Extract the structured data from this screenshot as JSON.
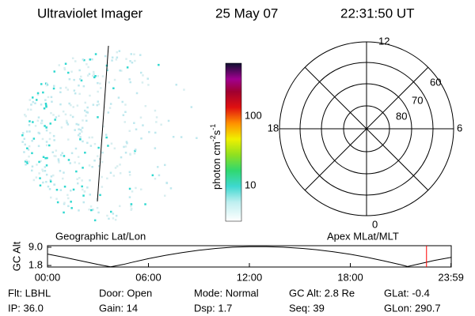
{
  "header": {
    "title": "Ultraviolet Imager",
    "date": "25 May 07",
    "time": "22:31:50 UT"
  },
  "colorbar": {
    "label": "photon cm",
    "exp1": "-2",
    "unit2": "s",
    "exp2": "-1",
    "ticks": [
      "100",
      "10"
    ]
  },
  "polar": {
    "labels": [
      "12",
      "18",
      "6",
      "0",
      "60",
      "70",
      "80"
    ]
  },
  "chart_data": {
    "type": "line",
    "ylabel": "GC Alt",
    "annotations": [
      "Geographic Lat/Lon",
      "Apex MLat/MLT"
    ],
    "x": [
      0,
      1,
      2,
      3,
      3.75,
      4.5,
      5,
      6,
      7,
      8,
      9,
      10,
      11,
      12,
      13,
      14,
      15,
      16,
      17,
      18,
      19,
      20,
      21,
      21.4,
      22,
      23,
      24
    ],
    "values": [
      6.3,
      5.0,
      3.6,
      2.2,
      1.3,
      2.2,
      3.0,
      4.5,
      5.8,
      6.9,
      7.8,
      8.5,
      9.0,
      9.2,
      9.2,
      9.0,
      8.6,
      8.0,
      7.2,
      6.2,
      5.0,
      3.6,
      2.1,
      1.4,
      2.3,
      3.8,
      5.0
    ],
    "color": "#000000",
    "marker_x": 22.53,
    "marker_color": "#ff0000",
    "xlim": [
      0,
      24
    ],
    "ylim": [
      1.2,
      9.6
    ],
    "xticks": [
      {
        "value": 0,
        "label": "00:00"
      },
      {
        "value": 6,
        "label": "06:00"
      },
      {
        "value": 12,
        "label": "12:00"
      },
      {
        "value": 18,
        "label": "18:00"
      },
      {
        "value": 23.983,
        "label": "23:59"
      }
    ],
    "yticks": [
      {
        "value": 9,
        "label": "9.0"
      },
      {
        "value": 1.8,
        "label": "1.8"
      }
    ]
  },
  "footer": [
    [
      "Flt: LBHL",
      "Door: Open",
      "Mode: Normal",
      "GC Alt: 2.8 Re",
      "GLat: -0.4"
    ],
    [
      "IP: 36.0",
      "Gain: 14",
      "Dsp:    1.7",
      "Seq: 39",
      "GLon: 290.7"
    ]
  ]
}
